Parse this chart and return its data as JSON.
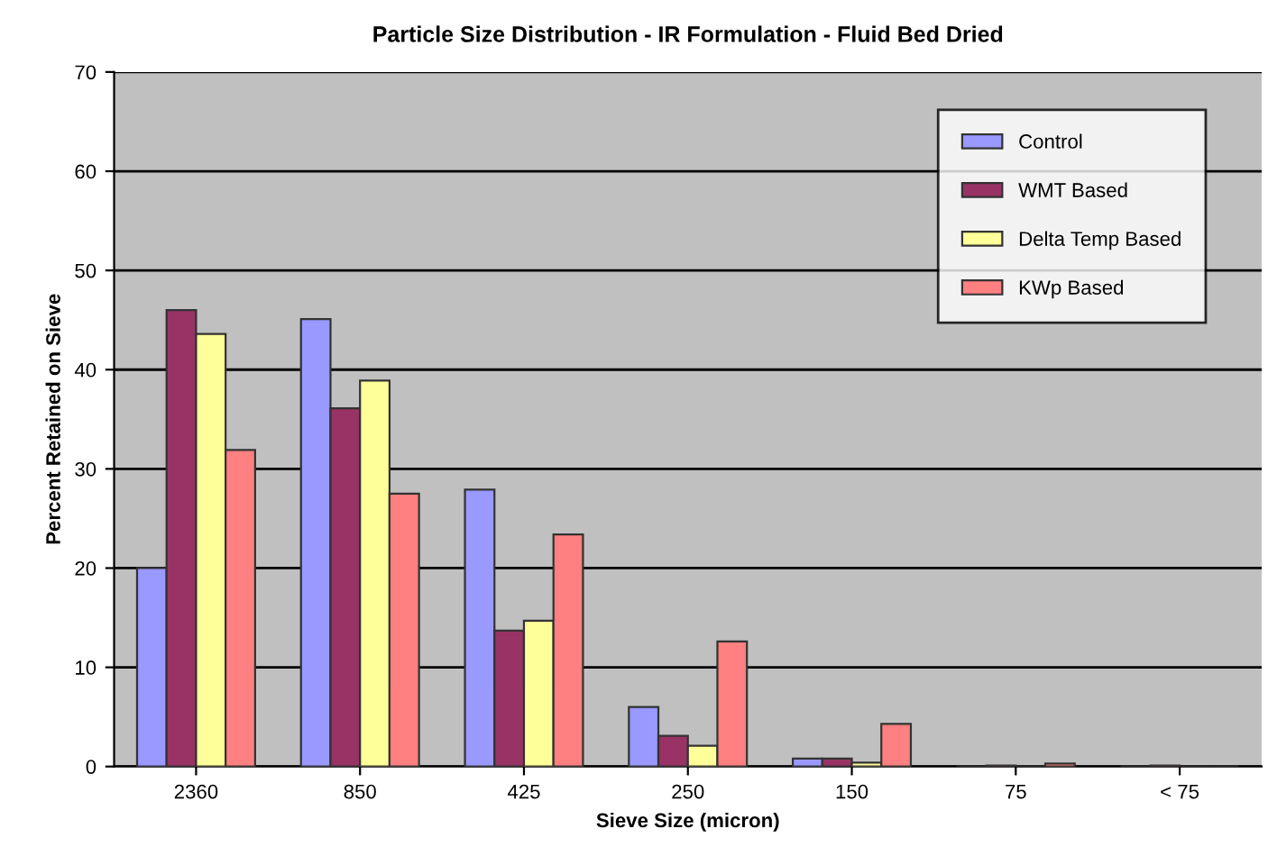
{
  "chart_data": {
    "type": "bar",
    "title": "Particle Size Distribution - IR Formulation - Fluid Bed Dried",
    "xlabel": "Sieve Size (micron)",
    "ylabel": "Percent Retained on Sieve",
    "categories": [
      "2360",
      "850",
      "425",
      "250",
      "150",
      "75",
      "< 75"
    ],
    "series": [
      {
        "name": "Control",
        "color": "#9999ff",
        "values": [
          20,
          45.1,
          27.9,
          6,
          0.8,
          null,
          null
        ]
      },
      {
        "name": "WMT Based",
        "color": "#993366",
        "values": [
          46,
          36.1,
          13.7,
          3.1,
          0.8,
          0.1,
          0.1
        ]
      },
      {
        "name": "Delta Temp Based",
        "color": "#ffff99",
        "values": [
          43.6,
          38.9,
          14.7,
          2.1,
          0.4,
          null,
          null
        ]
      },
      {
        "name": "KWp Based",
        "color": "#ff8080",
        "values": [
          31.9,
          27.5,
          23.4,
          12.6,
          4.3,
          0.3,
          null
        ]
      }
    ],
    "ylim": [
      0,
      70
    ],
    "yticks": [
      0,
      10,
      20,
      30,
      40,
      50,
      60,
      70
    ],
    "grid": "y",
    "legend": "top right"
  }
}
